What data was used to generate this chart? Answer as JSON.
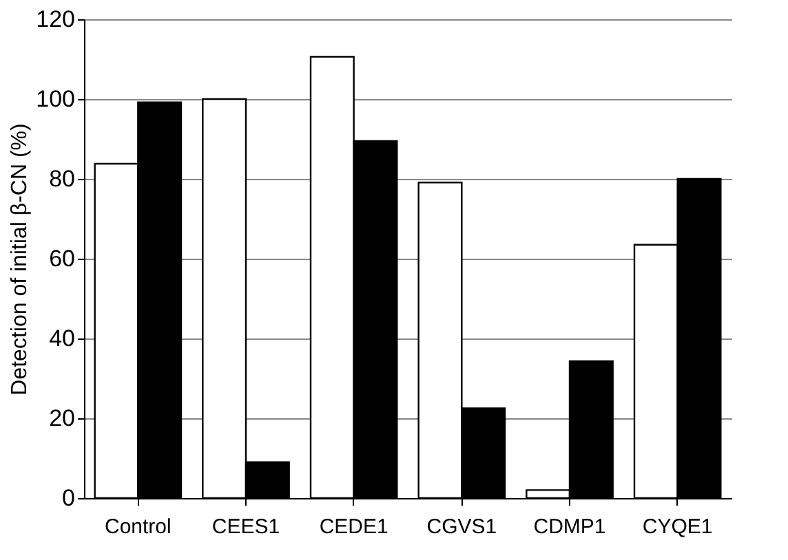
{
  "chart_data": {
    "type": "bar",
    "ylabel": "Detection of initial β-CN (%)",
    "categories": [
      "Control",
      "CEES1",
      "CEDE1",
      "CGVS1",
      "CDMP1",
      "CYQE1"
    ],
    "series": [
      {
        "color": "#ffffff",
        "values": [
          83.8,
          100,
          110.6,
          79.1,
          2.0,
          63.5
        ]
      },
      {
        "color": "#000000",
        "values": [
          99.2,
          9.0,
          89.5,
          22.5,
          34.3,
          80
        ]
      }
    ],
    "ylim": [
      0,
      120
    ],
    "yticks": [
      0,
      20,
      40,
      60,
      80,
      100,
      120
    ],
    "grid": "y"
  }
}
